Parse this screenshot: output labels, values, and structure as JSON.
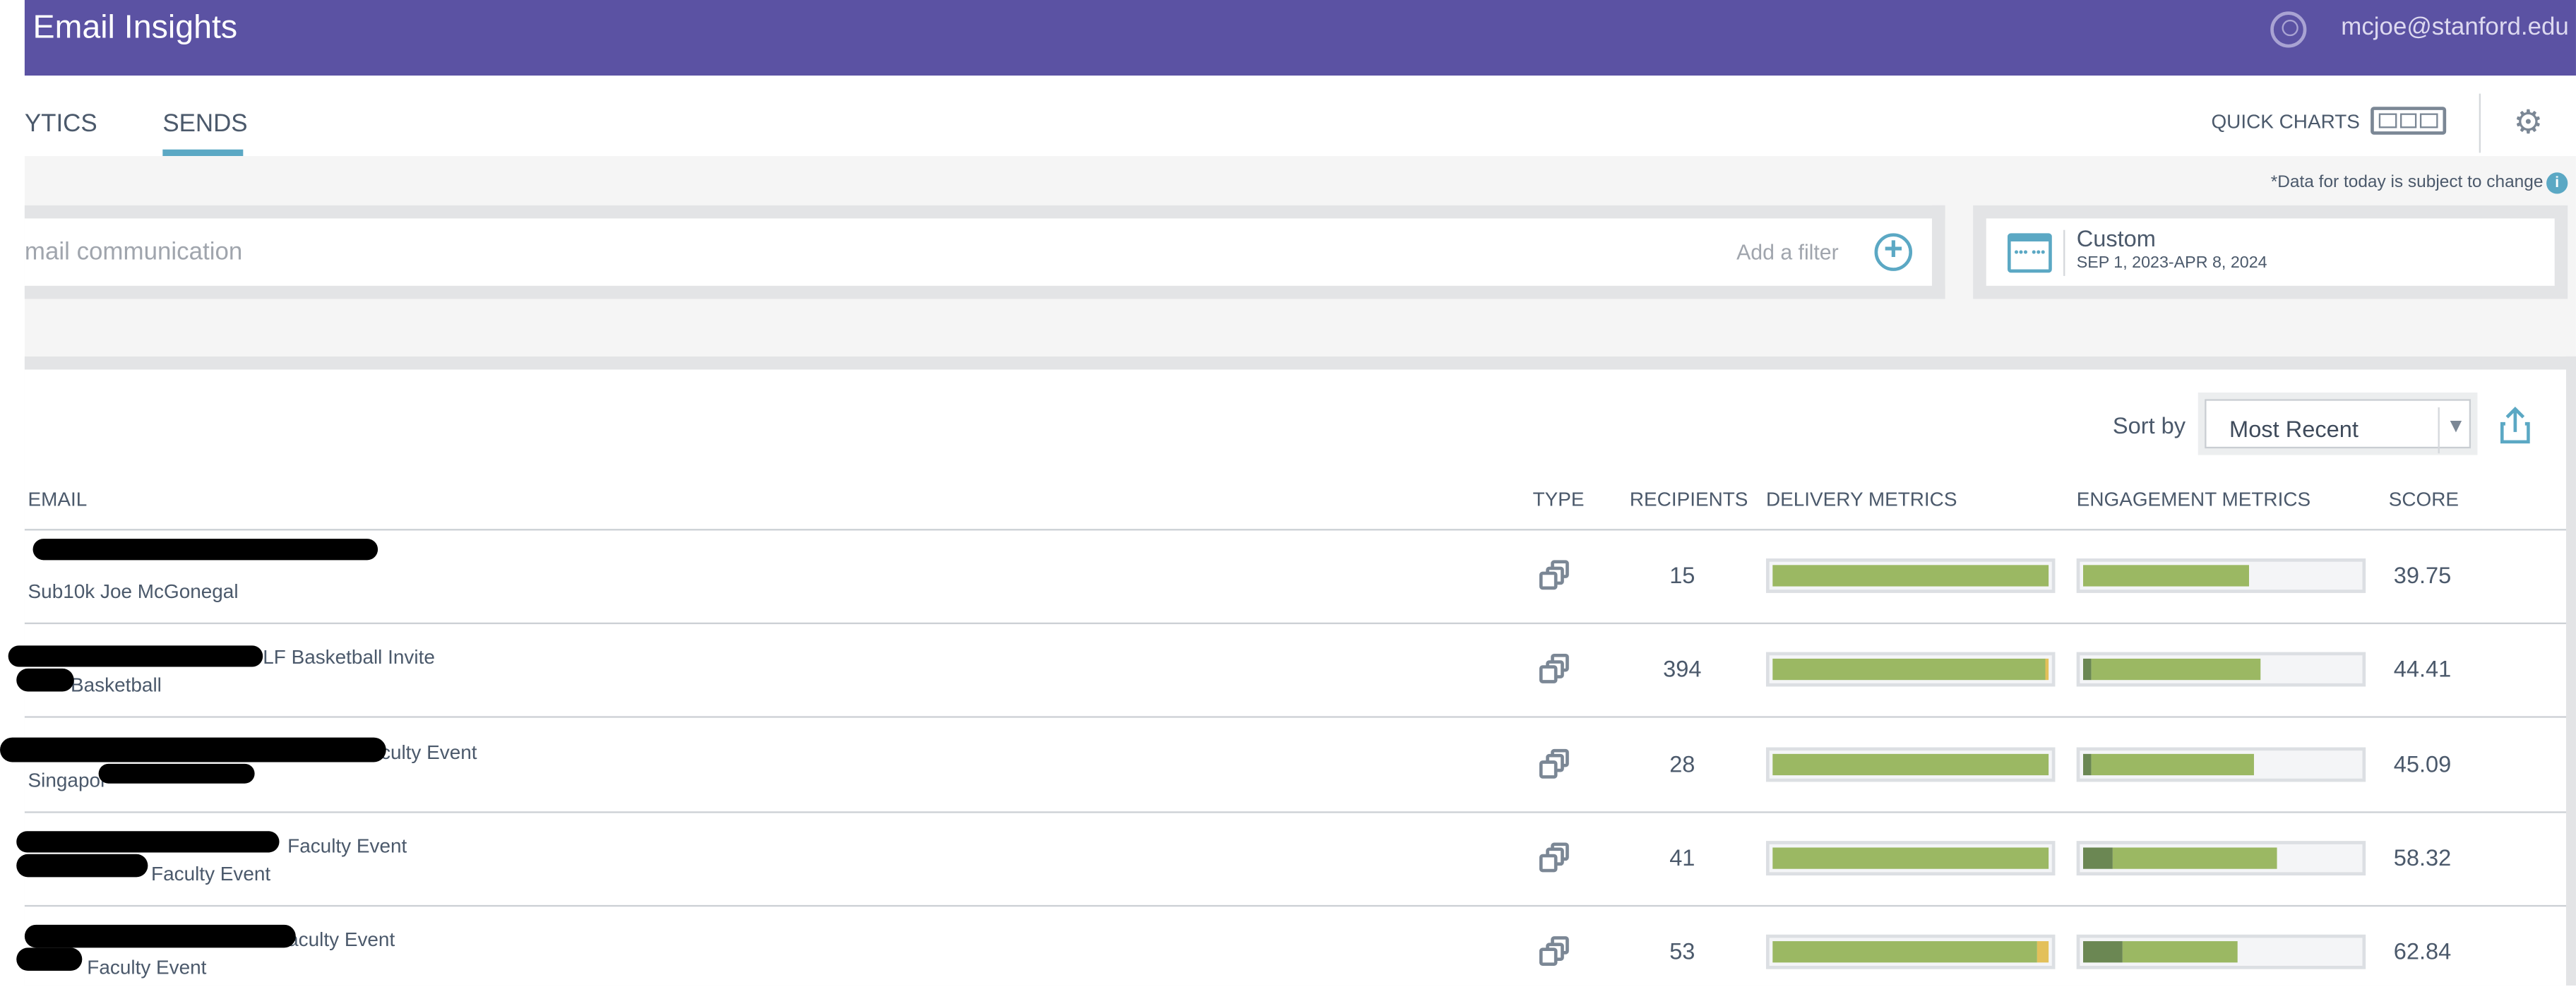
{
  "header": {
    "title": "Email Insights",
    "user_email": "mcjoe@stanford.edu",
    "user_icon": "user-circle-icon"
  },
  "tabs": [
    {
      "label": "YTICS",
      "active": false
    },
    {
      "label": "SENDS",
      "active": true
    }
  ],
  "toolbar": {
    "quick_charts": "QUICK CHARTS",
    "quick_charts_icon": "three-panels-icon",
    "settings_icon": "gear-icon"
  },
  "note": {
    "text": "*Data for today is subject to change",
    "icon": "i"
  },
  "filter": {
    "placeholder": "mail communication",
    "add_label": "Add a filter",
    "add_icon": "plus-circle-icon"
  },
  "date_range": {
    "preset": "Custom",
    "range": "SEP 1, 2023-APR 8, 2024",
    "icon": "calendar-icon",
    "icon_glyph": "••• •••"
  },
  "sort": {
    "label": "Sort by",
    "value": "Most Recent",
    "arrow": "▼",
    "export_icon": "share-upload-icon"
  },
  "columns": [
    "EMAIL",
    "TYPE",
    "RECIPIENTS",
    "DELIVERY METRICS",
    "ENGAGEMENT METRICS",
    "SCORE"
  ],
  "colors": {
    "header": "#5b52a3",
    "accent": "#5ba8c4",
    "delivered": "#9bb863",
    "engaged_dark": "#6b8753",
    "warning": "#e3c05a"
  },
  "rows": [
    {
      "line1": "",
      "line2": "Sub10k Joe McGonegal",
      "recipients": "15",
      "delivery": {
        "delivered_pct": 100,
        "warning_pct": 0
      },
      "engagement": {
        "dark_pct": 0,
        "light_pct": 60
      },
      "score": "39.75"
    },
    {
      "line1": "LF Basketball Invite",
      "line2": "Basketball",
      "recipients": "394",
      "delivery": {
        "delivered_pct": 99,
        "warning_pct": 1
      },
      "engagement": {
        "dark_pct": 3,
        "light_pct": 61
      },
      "score": "44.41"
    },
    {
      "line1": "aculty Event",
      "line2": "Singapor",
      "recipients": "28",
      "delivery": {
        "delivered_pct": 100,
        "warning_pct": 0
      },
      "engagement": {
        "dark_pct": 3,
        "light_pct": 59
      },
      "score": "45.09"
    },
    {
      "line1": "Faculty Event",
      "line2": "Faculty Event",
      "recipients": "41",
      "delivery": {
        "delivered_pct": 100,
        "warning_pct": 0
      },
      "engagement": {
        "dark_pct": 11,
        "light_pct": 59
      },
      "score": "58.32"
    },
    {
      "line1": "aculty Event",
      "line2": "Faculty Event",
      "recipients": "53",
      "delivery": {
        "delivered_pct": 96,
        "warning_pct": 4
      },
      "engagement": {
        "dark_pct": 14,
        "light_pct": 42
      },
      "score": "62.84"
    }
  ]
}
